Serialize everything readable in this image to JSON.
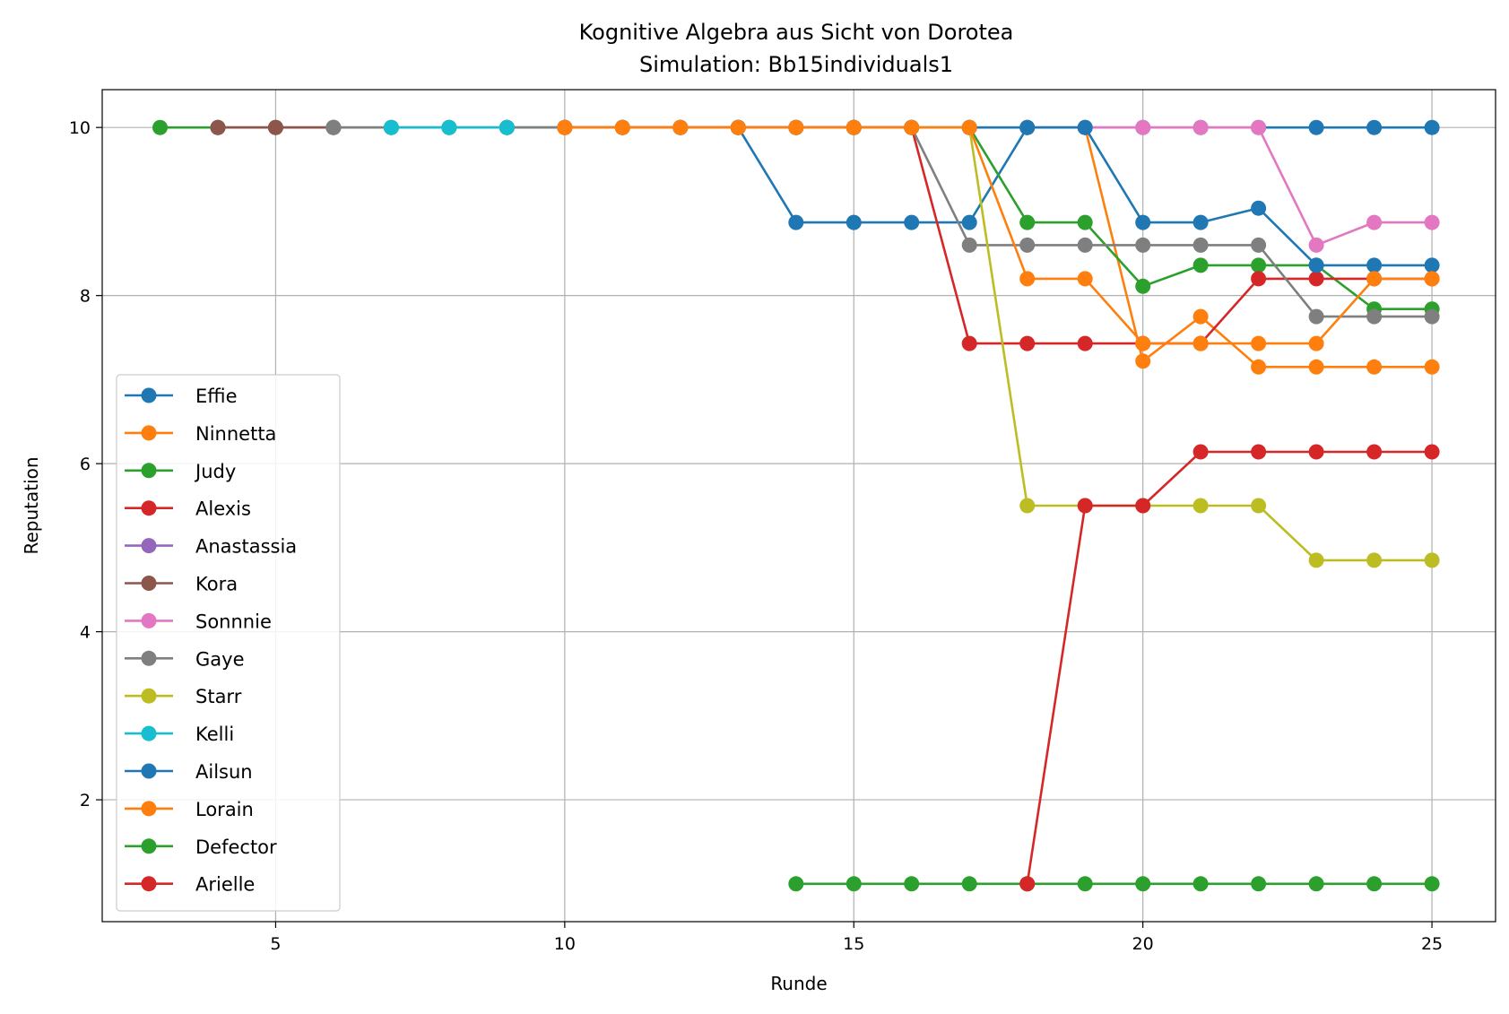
{
  "chart_data": {
    "type": "line",
    "title": "Kognitive Algebra aus Sicht von Dorotea",
    "subtitle": "Simulation: Bb15individuals1",
    "xlabel": "Runde",
    "ylabel": "Reputation",
    "xlim": [
      2,
      26.1
    ],
    "ylim": [
      0.55,
      10.45
    ],
    "xticks": [
      5,
      10,
      15,
      20,
      25
    ],
    "yticks": [
      2,
      4,
      6,
      8,
      10
    ],
    "grid": true,
    "legend_position": "lower-left",
    "series": [
      {
        "name": "Effie",
        "color": "#1f77b4",
        "x": [
          9,
          10,
          11,
          12,
          13,
          14,
          15,
          16,
          17,
          18,
          19,
          20,
          21,
          22,
          23,
          24,
          25
        ],
        "y": [
          10,
          10,
          10,
          10,
          10,
          8.87,
          8.87,
          8.87,
          8.87,
          10,
          10,
          10,
          10,
          10,
          10,
          10,
          10
        ]
      },
      {
        "name": "Ninnetta",
        "color": "#ff7f0e",
        "x": [
          10,
          11,
          12,
          13,
          14,
          15,
          16,
          17,
          18,
          19,
          20,
          21,
          22,
          23,
          24,
          25
        ],
        "y": [
          10,
          10,
          10,
          10,
          10,
          10,
          10,
          10,
          10,
          10,
          7.22,
          7.75,
          7.15,
          7.15,
          7.15,
          7.15
        ]
      },
      {
        "name": "Judy",
        "color": "#2ca02c",
        "x": [
          3,
          4,
          5,
          6,
          7,
          8,
          9,
          10,
          11,
          12,
          13,
          14,
          15,
          16,
          17,
          18,
          19,
          20,
          21,
          22,
          23,
          24,
          25
        ],
        "y": [
          10,
          10,
          10,
          10,
          10,
          10,
          10,
          10,
          10,
          10,
          10,
          10,
          10,
          10,
          10,
          8.87,
          8.87,
          8.11,
          8.36,
          8.36,
          8.36,
          7.84,
          7.84
        ]
      },
      {
        "name": "Alexis",
        "color": "#d62728",
        "x": [
          10,
          11,
          12,
          13,
          14,
          15,
          16,
          17,
          18,
          19,
          20,
          21,
          22,
          23,
          24,
          25
        ],
        "y": [
          10,
          10,
          10,
          10,
          10,
          10,
          10,
          7.43,
          7.43,
          7.43,
          7.43,
          7.43,
          8.2,
          8.2,
          8.2,
          8.2
        ]
      },
      {
        "name": "Anastassia",
        "color": "#9467bd",
        "x": [
          4,
          5,
          6
        ],
        "y": [
          10,
          10,
          10
        ]
      },
      {
        "name": "Kora",
        "color": "#8c564b",
        "x": [
          4,
          5,
          6
        ],
        "y": [
          10,
          10,
          10
        ]
      },
      {
        "name": "Sonnnie",
        "color": "#e377c2",
        "x": [
          18,
          19,
          20,
          21,
          22,
          23,
          24,
          25
        ],
        "y": [
          10,
          10,
          10,
          10,
          10,
          8.6,
          8.87,
          8.87
        ]
      },
      {
        "name": "Gaye",
        "color": "#7f7f7f",
        "x": [
          6,
          7,
          8,
          9,
          10,
          11,
          12,
          13,
          14,
          15,
          16,
          17,
          18,
          19,
          20,
          21,
          22,
          23,
          24,
          25
        ],
        "y": [
          10,
          10,
          10,
          10,
          10,
          10,
          10,
          10,
          10,
          10,
          10,
          8.6,
          8.6,
          8.6,
          8.6,
          8.6,
          8.6,
          7.75,
          7.75,
          7.75
        ]
      },
      {
        "name": "Starr",
        "color": "#bcbd22",
        "x": [
          14,
          15,
          16,
          17,
          18,
          19,
          20,
          21,
          22,
          23,
          24,
          25
        ],
        "y": [
          10,
          10,
          10,
          10,
          5.5,
          5.5,
          5.5,
          5.5,
          5.5,
          4.85,
          4.85,
          4.85
        ]
      },
      {
        "name": "Kelli",
        "color": "#17becf",
        "x": [
          7,
          8,
          9
        ],
        "y": [
          10,
          10,
          10
        ]
      },
      {
        "name": "Ailsun",
        "color": "#1f77b4",
        "x": [
          13,
          14,
          15,
          16,
          17,
          18,
          19,
          20,
          21,
          22,
          23,
          24,
          25
        ],
        "y": [
          10,
          10,
          10,
          10,
          10,
          10,
          10,
          8.87,
          8.87,
          9.04,
          8.36,
          8.36,
          8.36
        ]
      },
      {
        "name": "Lorain",
        "color": "#ff7f0e",
        "x": [
          10,
          11,
          12,
          13,
          14,
          15,
          16,
          17,
          18,
          19,
          20,
          21,
          22,
          23,
          24,
          25
        ],
        "y": [
          10,
          10,
          10,
          10,
          10,
          10,
          10,
          10,
          8.2,
          8.2,
          7.43,
          7.43,
          7.43,
          7.43,
          8.2,
          8.2
        ]
      },
      {
        "name": "Defector",
        "color": "#2ca02c",
        "x": [
          14,
          15,
          16,
          17,
          18,
          19,
          20,
          21,
          22,
          23,
          24,
          25
        ],
        "y": [
          1,
          1,
          1,
          1,
          1,
          1,
          1,
          1,
          1,
          1,
          1,
          1
        ]
      },
      {
        "name": "Arielle",
        "color": "#d62728",
        "x": [
          18,
          19,
          20,
          21,
          22,
          23,
          24,
          25
        ],
        "y": [
          1,
          5.5,
          5.5,
          6.14,
          6.14,
          6.14,
          6.14,
          6.14
        ]
      }
    ]
  }
}
